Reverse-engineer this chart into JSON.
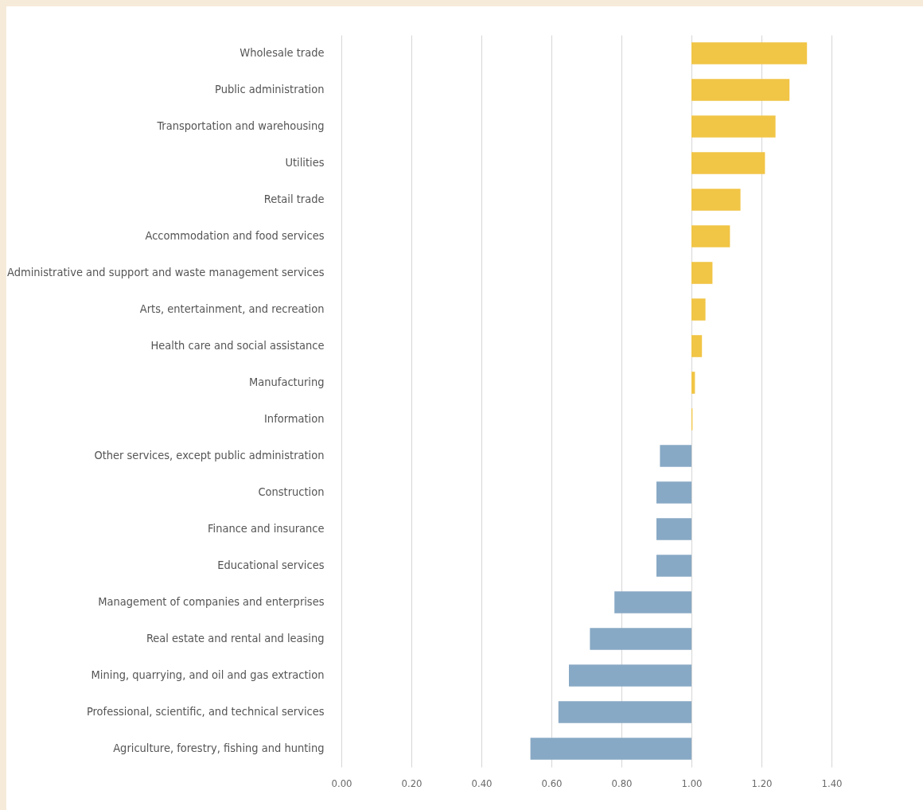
{
  "chart_data": {
    "type": "bar",
    "orientation": "horizontal",
    "categories": [
      "Wholesale trade",
      "Public administration",
      "Transportation and warehousing",
      "Utilities",
      "Retail trade",
      "Accommodation and food services",
      "Administrative and support and waste management services",
      "Arts, entertainment, and recreation",
      "Health care and social assistance",
      "Manufacturing",
      "Information",
      "Other services, except public administration",
      "Construction",
      "Finance and insurance",
      "Educational services",
      "Management of companies and enterprises",
      "Real estate and rental and leasing",
      "Mining, quarrying, and oil and gas extraction",
      "Professional, scientific, and technical services",
      "Agriculture, forestry, fishing and hunting"
    ],
    "values": [
      0.33,
      0.28,
      0.24,
      0.21,
      0.14,
      0.11,
      0.06,
      0.04,
      0.03,
      0.01,
      0.003,
      -0.09,
      -0.1,
      -0.1,
      -0.1,
      -0.22,
      -0.29,
      -0.35,
      -0.38,
      -0.46
    ],
    "base": [
      1,
      1,
      1,
      1,
      1,
      1,
      1,
      1,
      1,
      1,
      1,
      1,
      1,
      1,
      1,
      1,
      1,
      1,
      1,
      1
    ],
    "colors": [
      "#f1c546",
      "#f1c546",
      "#f1c546",
      "#f1c546",
      "#f1c546",
      "#f1c546",
      "#f1c546",
      "#f1c546",
      "#f1c546",
      "#f1c546",
      "#f1c546",
      "#88a9c5",
      "#88a9c5",
      "#88a9c5",
      "#88a9c5",
      "#88a9c5",
      "#88a9c5",
      "#88a9c5",
      "#88a9c5",
      "#88a9c5"
    ],
    "xlim": [
      0,
      1.4
    ],
    "xticks": [
      {
        "value": 0,
        "label": "0.00"
      },
      {
        "value": 0.2,
        "label": "0.20"
      },
      {
        "value": 0.4,
        "label": "0.40"
      },
      {
        "value": 0.6,
        "label": "0.60"
      },
      {
        "value": 0.8,
        "label": "0.80"
      },
      {
        "value": 1,
        "label": "1.00"
      },
      {
        "value": 1.2,
        "label": "1.20"
      },
      {
        "value": 1.4,
        "label": "1.40"
      }
    ],
    "grid": "x"
  }
}
